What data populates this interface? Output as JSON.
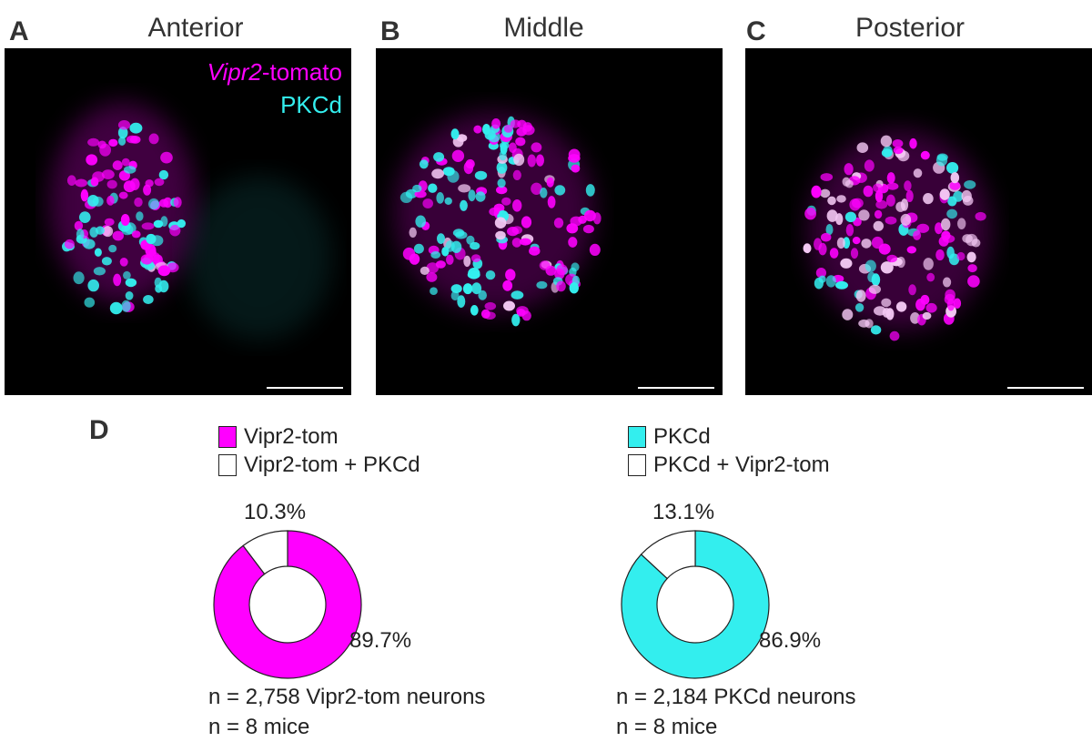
{
  "panels": [
    {
      "letter": "A",
      "title": "Anterior"
    },
    {
      "letter": "B",
      "title": "Middle"
    },
    {
      "letter": "C",
      "title": "Posterior"
    }
  ],
  "overlay": {
    "gene_italic": "Vipr2",
    "gene_suffix": "-tomato",
    "marker": "PKCd"
  },
  "colors": {
    "magenta": "#ff00ff",
    "cyan": "#33eeee",
    "white": "#ffffff",
    "black": "#000000"
  },
  "panel_d": {
    "letter": "D"
  },
  "chart_data": [
    {
      "type": "pie",
      "style": "donut",
      "legend": [
        {
          "label": "Vipr2-tom",
          "color": "#ff00ff"
        },
        {
          "label": "Vipr2-tom + PKCd",
          "color": "#ffffff"
        }
      ],
      "slices": [
        {
          "label": "Vipr2-tom",
          "value": 89.7,
          "display": "89.7%",
          "color": "#ff00ff"
        },
        {
          "label": "Vipr2-tom + PKCd",
          "value": 10.3,
          "display": "10.3%",
          "color": "#ffffff"
        }
      ],
      "notes": [
        "n = 2,758 Vipr2-tom neurons",
        "n = 8 mice"
      ]
    },
    {
      "type": "pie",
      "style": "donut",
      "legend": [
        {
          "label": "PKCd",
          "color": "#33eeee"
        },
        {
          "label": "PKCd + Vipr2-tom",
          "color": "#ffffff"
        }
      ],
      "slices": [
        {
          "label": "PKCd",
          "value": 86.9,
          "display": "86.9%",
          "color": "#33eeee"
        },
        {
          "label": "PKCd + Vipr2-tom",
          "value": 13.1,
          "display": "13.1%",
          "color": "#ffffff"
        }
      ],
      "notes": [
        "n = 2,184 PKCd neurons",
        "n = 8 mice"
      ]
    }
  ]
}
